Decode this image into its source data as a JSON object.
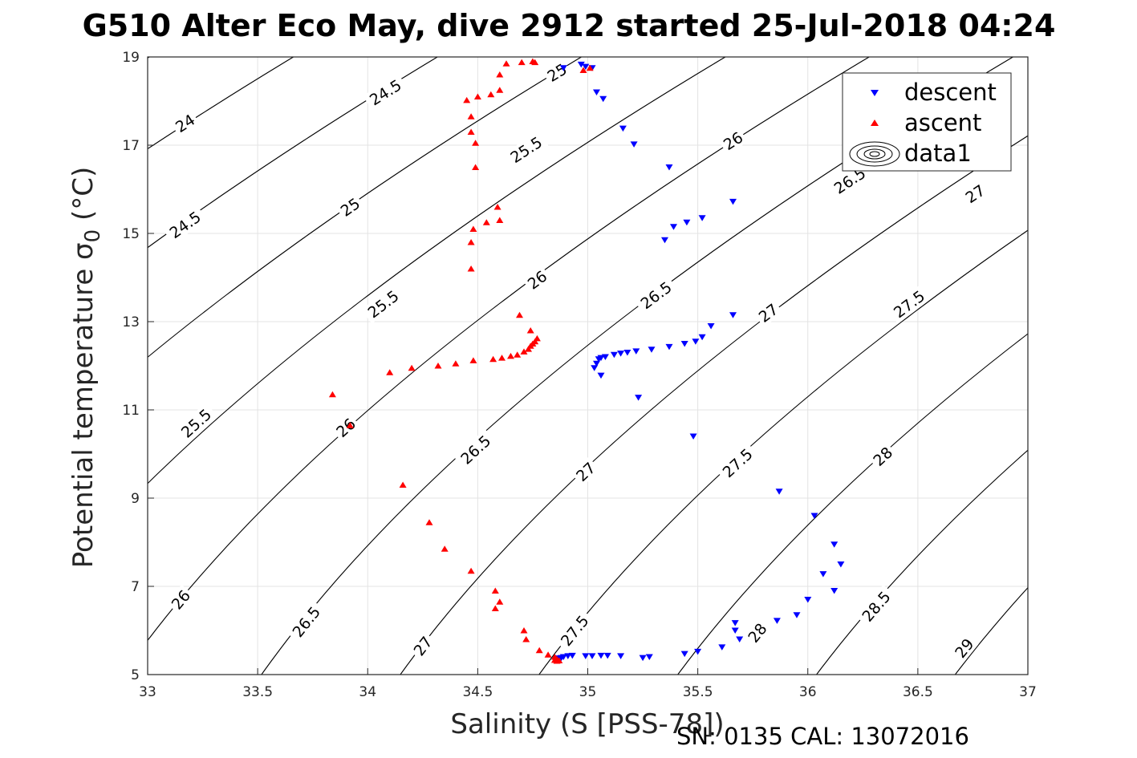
{
  "chart_data": {
    "type": "scatter",
    "title": "G510 Alter Eco May, dive 2912 started 25-Jul-2018 04:24",
    "xlabel": "Salinity (S [PSS-78])",
    "ylabel": "Potential temperature σ",
    "ylabel_subscript": "0",
    "ylabel_unit": "(°C)",
    "xlim": [
      33,
      37
    ],
    "ylim": [
      5,
      19
    ],
    "xticks": [
      33,
      33.5,
      34,
      34.5,
      35,
      35.5,
      36,
      36.5,
      37
    ],
    "yticks": [
      5,
      7,
      9,
      11,
      13,
      15,
      17,
      19
    ],
    "grid": true,
    "legend_position": "top-right",
    "footer": "SN: 0135  CAL: 13072016",
    "contour_labels": [
      {
        "text": "24",
        "s": 33.17,
        "t": 17.5
      },
      {
        "text": "24.5",
        "s": 34.08,
        "t": 18.2
      },
      {
        "text": "25",
        "s": 34.86,
        "t": 18.65
      },
      {
        "text": "24.5",
        "s": 33.17,
        "t": 15.2
      },
      {
        "text": "25",
        "s": 33.92,
        "t": 15.6
      },
      {
        "text": "25.5",
        "s": 34.72,
        "t": 16.9
      },
      {
        "text": "26",
        "s": 35.66,
        "t": 17.1
      },
      {
        "text": "26.5",
        "s": 36.19,
        "t": 16.2
      },
      {
        "text": "27",
        "s": 36.76,
        "t": 15.9
      },
      {
        "text": "25.5",
        "s": 33.22,
        "t": 10.7
      },
      {
        "text": "25.5",
        "s": 34.07,
        "t": 13.4
      },
      {
        "text": "26",
        "s": 34.77,
        "t": 13.95
      },
      {
        "text": "26.5",
        "s": 35.31,
        "t": 13.6
      },
      {
        "text": "27",
        "s": 35.82,
        "t": 13.2
      },
      {
        "text": "27.5",
        "s": 36.46,
        "t": 13.4
      },
      {
        "text": "26",
        "s": 33.9,
        "t": 10.6
      },
      {
        "text": "26.5",
        "s": 34.49,
        "t": 10.1
      },
      {
        "text": "27",
        "s": 34.99,
        "t": 9.6
      },
      {
        "text": "27.5",
        "s": 35.68,
        "t": 9.8
      },
      {
        "text": "28",
        "s": 36.34,
        "t": 9.95
      },
      {
        "text": "26",
        "s": 33.15,
        "t": 6.7
      },
      {
        "text": "26.5",
        "s": 33.72,
        "t": 6.2
      },
      {
        "text": "27",
        "s": 34.25,
        "t": 5.65
      },
      {
        "text": "27.5",
        "s": 34.94,
        "t": 6.0
      },
      {
        "text": "28",
        "s": 35.77,
        "t": 5.95
      },
      {
        "text": "28.5",
        "s": 36.31,
        "t": 6.55
      },
      {
        "text": "29",
        "s": 36.71,
        "t": 5.6
      }
    ],
    "series": [
      {
        "name": "descent",
        "color": "#0000ff",
        "marker": "triangle-down",
        "points": [
          [
            34.89,
            18.75
          ],
          [
            34.97,
            18.83
          ],
          [
            34.99,
            18.78
          ],
          [
            35.02,
            18.75
          ],
          [
            35.04,
            18.2
          ],
          [
            35.07,
            18.05
          ],
          [
            35.16,
            17.38
          ],
          [
            35.21,
            17.02
          ],
          [
            35.37,
            16.5
          ],
          [
            35.66,
            15.72
          ],
          [
            35.52,
            15.35
          ],
          [
            35.45,
            15.25
          ],
          [
            35.39,
            15.15
          ],
          [
            35.35,
            14.85
          ],
          [
            35.66,
            13.15
          ],
          [
            35.56,
            12.9
          ],
          [
            35.52,
            12.65
          ],
          [
            35.49,
            12.55
          ],
          [
            35.44,
            12.5
          ],
          [
            35.37,
            12.43
          ],
          [
            35.29,
            12.37
          ],
          [
            35.22,
            12.33
          ],
          [
            35.18,
            12.3
          ],
          [
            35.15,
            12.28
          ],
          [
            35.12,
            12.25
          ],
          [
            35.08,
            12.2
          ],
          [
            35.06,
            12.18
          ],
          [
            35.05,
            12.15
          ],
          [
            35.04,
            12.05
          ],
          [
            35.03,
            11.95
          ],
          [
            35.06,
            11.78
          ],
          [
            35.23,
            11.28
          ],
          [
            35.48,
            10.4
          ],
          [
            35.87,
            9.15
          ],
          [
            36.03,
            8.6
          ],
          [
            36.12,
            7.95
          ],
          [
            36.15,
            7.5
          ],
          [
            36.07,
            7.28
          ],
          [
            36.12,
            6.9
          ],
          [
            36.0,
            6.7
          ],
          [
            35.95,
            6.35
          ],
          [
            35.86,
            6.22
          ],
          [
            35.67,
            6.17
          ],
          [
            35.67,
            6.0
          ],
          [
            35.69,
            5.8
          ],
          [
            35.61,
            5.62
          ],
          [
            35.5,
            5.52
          ],
          [
            35.44,
            5.47
          ],
          [
            35.28,
            5.4
          ],
          [
            35.25,
            5.38
          ],
          [
            35.15,
            5.42
          ],
          [
            35.09,
            5.43
          ],
          [
            35.06,
            5.43
          ],
          [
            35.02,
            5.42
          ],
          [
            34.99,
            5.42
          ],
          [
            34.93,
            5.43
          ],
          [
            34.91,
            5.42
          ],
          [
            34.89,
            5.4
          ],
          [
            34.88,
            5.38
          ],
          [
            34.87,
            5.37
          ]
        ]
      },
      {
        "name": "ascent",
        "color": "#ff0000",
        "marker": "triangle-up",
        "points": [
          [
            34.98,
            18.7
          ],
          [
            35.01,
            18.75
          ],
          [
            34.76,
            18.88
          ],
          [
            34.75,
            18.9
          ],
          [
            34.7,
            18.88
          ],
          [
            34.63,
            18.85
          ],
          [
            34.6,
            18.6
          ],
          [
            34.6,
            18.25
          ],
          [
            34.56,
            18.15
          ],
          [
            34.5,
            18.1
          ],
          [
            34.45,
            18.02
          ],
          [
            34.47,
            17.65
          ],
          [
            34.47,
            17.3
          ],
          [
            34.49,
            17.05
          ],
          [
            34.49,
            16.5
          ],
          [
            34.59,
            15.6
          ],
          [
            34.6,
            15.3
          ],
          [
            34.54,
            15.25
          ],
          [
            34.48,
            15.1
          ],
          [
            34.47,
            14.8
          ],
          [
            34.47,
            14.2
          ],
          [
            34.69,
            13.15
          ],
          [
            34.74,
            12.8
          ],
          [
            34.77,
            12.62
          ],
          [
            34.76,
            12.55
          ],
          [
            34.75,
            12.5
          ],
          [
            34.74,
            12.45
          ],
          [
            34.73,
            12.38
          ],
          [
            34.71,
            12.32
          ],
          [
            34.68,
            12.25
          ],
          [
            34.65,
            12.22
          ],
          [
            34.61,
            12.18
          ],
          [
            34.57,
            12.15
          ],
          [
            34.48,
            12.12
          ],
          [
            34.4,
            12.05
          ],
          [
            34.32,
            12.0
          ],
          [
            34.2,
            11.95
          ],
          [
            34.1,
            11.85
          ],
          [
            33.84,
            11.35
          ],
          [
            33.92,
            10.65
          ],
          [
            34.16,
            9.3
          ],
          [
            34.28,
            8.45
          ],
          [
            34.35,
            7.85
          ],
          [
            34.47,
            7.35
          ],
          [
            34.58,
            6.9
          ],
          [
            34.6,
            6.65
          ],
          [
            34.58,
            6.5
          ],
          [
            34.71,
            6.0
          ],
          [
            34.72,
            5.8
          ],
          [
            34.78,
            5.55
          ],
          [
            34.82,
            5.45
          ],
          [
            34.85,
            5.4
          ],
          [
            34.86,
            5.35
          ],
          [
            34.87,
            5.32
          ],
          [
            34.86,
            5.31
          ],
          [
            34.85,
            5.33
          ]
        ]
      },
      {
        "name": "data1",
        "color": "#000000",
        "marker": "contour"
      }
    ]
  }
}
